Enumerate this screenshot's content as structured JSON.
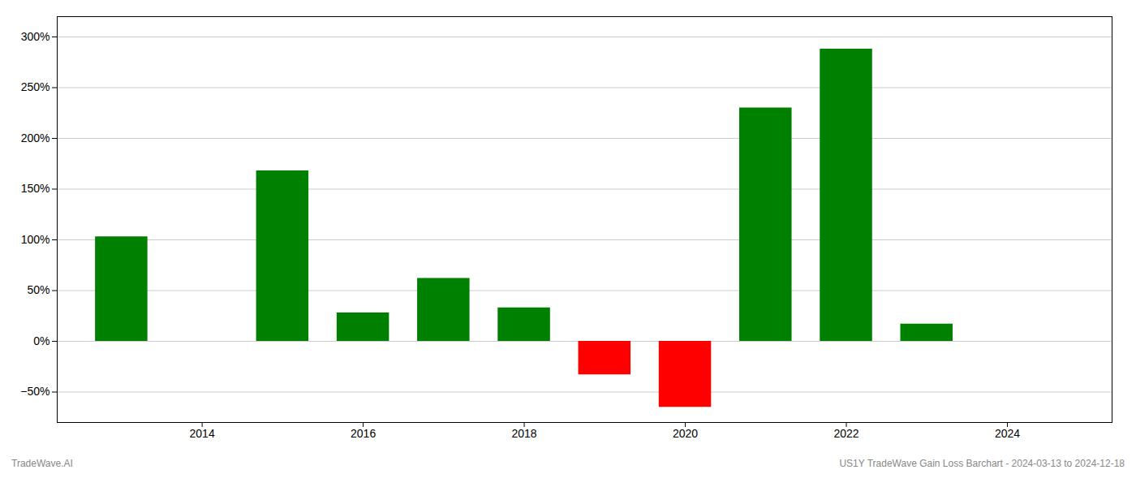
{
  "chart_data": {
    "type": "bar",
    "x": [
      2013,
      2015,
      2016,
      2017,
      2018,
      2019,
      2020,
      2021,
      2022,
      2023
    ],
    "values": [
      1.03,
      1.68,
      0.28,
      0.62,
      0.33,
      -0.33,
      -0.65,
      2.3,
      2.88,
      0.17
    ],
    "colors": [
      "#008000",
      "#008000",
      "#008000",
      "#008000",
      "#008000",
      "#ff0000",
      "#ff0000",
      "#008000",
      "#008000",
      "#008000"
    ],
    "xlim": [
      2012.2,
      2025.3
    ],
    "xticks": [
      2014,
      2016,
      2018,
      2020,
      2022,
      2024
    ],
    "ylim": [
      -0.8,
      3.2
    ],
    "yticks": [
      {
        "value": -0.5,
        "label": "−50%"
      },
      {
        "value": 0.0,
        "label": "0%"
      },
      {
        "value": 0.5,
        "label": "50%"
      },
      {
        "value": 1.0,
        "label": "100%"
      },
      {
        "value": 1.5,
        "label": "150%"
      },
      {
        "value": 2.0,
        "label": "200%"
      },
      {
        "value": 2.5,
        "label": "250%"
      },
      {
        "value": 3.0,
        "label": "300%"
      }
    ],
    "grid": true,
    "annotations": [
      "TradeWave.AI",
      "US1Y TradeWave Gain Loss Barchart - 2024-03-13 to 2024-12-18"
    ]
  }
}
